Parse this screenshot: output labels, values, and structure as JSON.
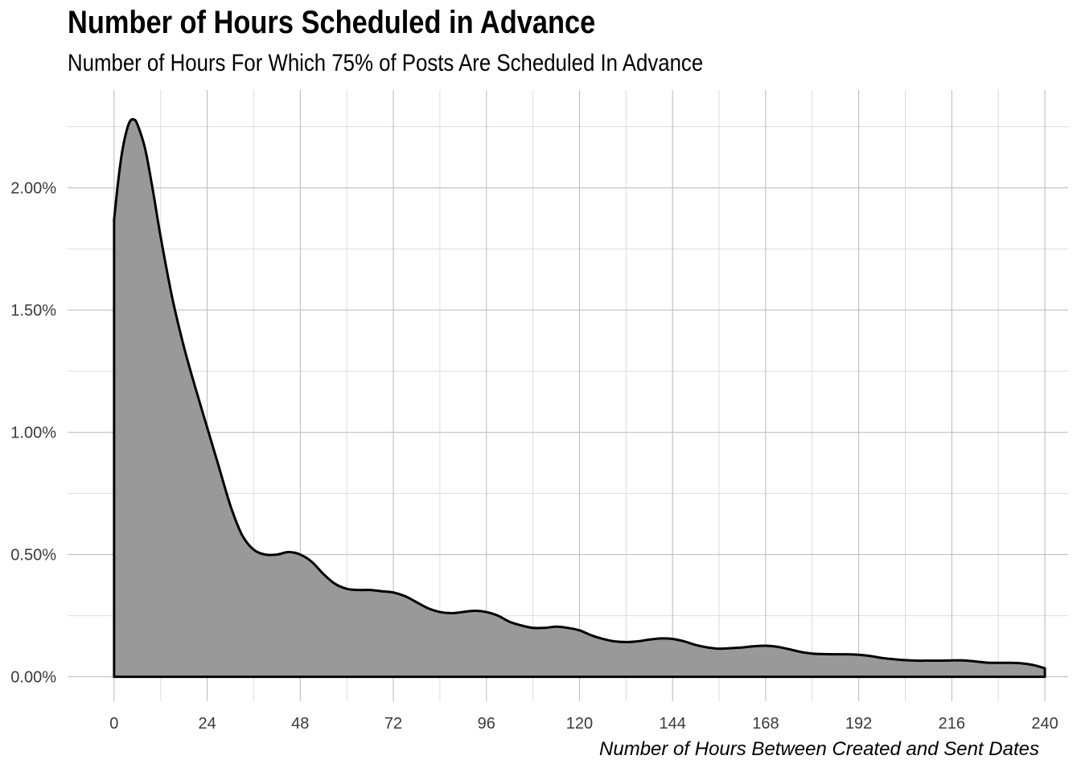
{
  "chart_data": {
    "type": "area",
    "title": "Number of Hours Scheduled in Advance",
    "subtitle": "Number of Hours For Which 75% of Posts Are Scheduled In Advance",
    "xlabel": "Number of Hours Between Created and Sent Dates",
    "ylabel": "",
    "xlim": [
      -12,
      246
    ],
    "ylim": [
      -0.1,
      2.4
    ],
    "x_ticks": [
      0,
      24,
      48,
      72,
      96,
      120,
      144,
      168,
      192,
      216,
      240
    ],
    "x_tick_labels": [
      "0",
      "24",
      "48",
      "72",
      "96",
      "120",
      "144",
      "168",
      "192",
      "216",
      "240"
    ],
    "y_ticks": [
      0,
      0.5,
      1.0,
      1.5,
      2.0
    ],
    "y_tick_labels": [
      "0.00%",
      "0.50%",
      "1.00%",
      "1.50%",
      "2.00%"
    ],
    "grid": true,
    "fill_color": "#999999",
    "line_color": "#000000",
    "x": [
      0,
      1,
      2,
      3,
      4,
      5,
      6,
      8,
      10,
      12,
      15,
      18,
      21,
      24,
      27,
      30,
      33,
      36,
      39,
      42,
      45,
      48,
      51,
      54,
      57,
      60,
      63,
      66,
      69,
      72,
      75,
      78,
      81,
      84,
      87,
      90,
      93,
      96,
      99,
      102,
      105,
      108,
      111,
      114,
      117,
      120,
      123,
      126,
      129,
      132,
      135,
      138,
      141,
      144,
      147,
      150,
      153,
      156,
      159,
      162,
      165,
      168,
      171,
      174,
      177,
      180,
      183,
      186,
      189,
      192,
      195,
      198,
      201,
      204,
      207,
      210,
      213,
      216,
      219,
      222,
      225,
      228,
      231,
      234,
      237,
      240
    ],
    "y": [
      1.87,
      2.02,
      2.14,
      2.22,
      2.27,
      2.28,
      2.26,
      2.16,
      1.99,
      1.8,
      1.55,
      1.35,
      1.18,
      1.02,
      0.86,
      0.7,
      0.58,
      0.52,
      0.5,
      0.5,
      0.51,
      0.5,
      0.47,
      0.42,
      0.38,
      0.36,
      0.355,
      0.355,
      0.35,
      0.345,
      0.33,
      0.305,
      0.28,
      0.265,
      0.26,
      0.265,
      0.27,
      0.265,
      0.25,
      0.225,
      0.21,
      0.2,
      0.2,
      0.205,
      0.2,
      0.19,
      0.17,
      0.155,
      0.145,
      0.142,
      0.145,
      0.152,
      0.157,
      0.155,
      0.145,
      0.13,
      0.12,
      0.115,
      0.117,
      0.12,
      0.125,
      0.127,
      0.123,
      0.113,
      0.102,
      0.095,
      0.093,
      0.092,
      0.092,
      0.09,
      0.085,
      0.077,
      0.072,
      0.068,
      0.066,
      0.066,
      0.066,
      0.067,
      0.067,
      0.063,
      0.058,
      0.057,
      0.057,
      0.055,
      0.048,
      0.035
    ]
  }
}
